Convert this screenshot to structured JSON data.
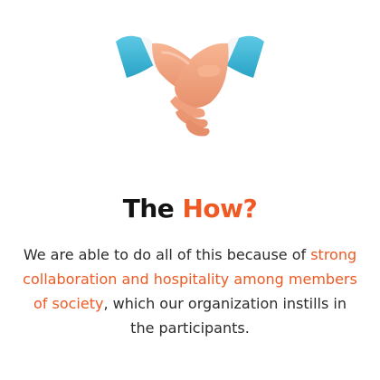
{
  "illustration": {
    "icon": "handshake-icon",
    "colors": {
      "sleeve": "#3fb7d6",
      "cuff": "#f4f6f8",
      "skin": "#f2a582",
      "skin_shadow": "#e08766"
    }
  },
  "heading": {
    "part1": "The",
    "part2": "How?"
  },
  "paragraph": {
    "text_before": "We are able to do all of this because of ",
    "highlight": "strong collaboration and hospitality among members of society",
    "text_after": ", which our organization instills in the participants."
  },
  "colors": {
    "accent": "#ef5a24",
    "heading_dark": "#141414",
    "body": "#2b2b2b",
    "background": "#ffffff"
  }
}
